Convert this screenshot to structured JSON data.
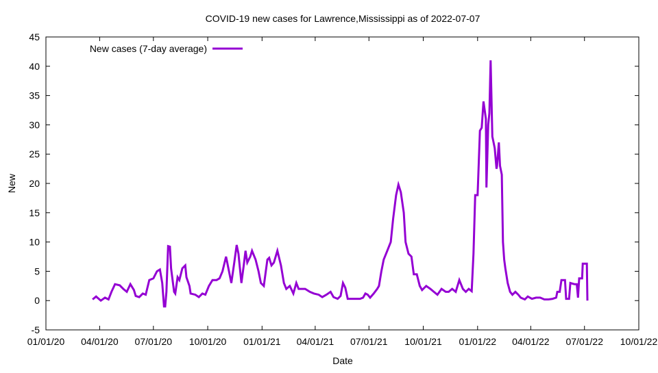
{
  "chart_data": {
    "type": "line",
    "title": "COVID-19 new cases for Lawrence,Mississippi as of 2022-07-07",
    "xlabel": "Date",
    "ylabel": "New",
    "xlim": [
      "2020-01-01",
      "2022-10-01"
    ],
    "ylim": [
      -5,
      45
    ],
    "yticks": [
      -5,
      0,
      5,
      10,
      15,
      20,
      25,
      30,
      35,
      40,
      45
    ],
    "xticks": [
      {
        "date": "2020-01-01",
        "label": "01/01/20"
      },
      {
        "date": "2020-04-01",
        "label": "04/01/20"
      },
      {
        "date": "2020-07-01",
        "label": "07/01/20"
      },
      {
        "date": "2020-10-01",
        "label": "10/01/20"
      },
      {
        "date": "2021-01-01",
        "label": "01/01/21"
      },
      {
        "date": "2021-04-01",
        "label": "04/01/21"
      },
      {
        "date": "2021-07-01",
        "label": "07/01/21"
      },
      {
        "date": "2021-10-01",
        "label": "10/01/21"
      },
      {
        "date": "2022-01-01",
        "label": "01/01/22"
      },
      {
        "date": "2022-04-01",
        "label": "04/01/22"
      },
      {
        "date": "2022-07-01",
        "label": "07/01/22"
      },
      {
        "date": "2022-10-01",
        "label": "10/01/22"
      }
    ],
    "grid": false,
    "legend_position": "top-left",
    "series": [
      {
        "name": "New cases (7-day average)",
        "color": "#9400d3",
        "x": [
          "2020-03-20",
          "2020-03-26",
          "2020-04-03",
          "2020-04-10",
          "2020-04-16",
          "2020-04-21",
          "2020-04-27",
          "2020-05-05",
          "2020-05-11",
          "2020-05-17",
          "2020-05-23",
          "2020-05-29",
          "2020-06-01",
          "2020-06-07",
          "2020-06-13",
          "2020-06-18",
          "2020-06-24",
          "2020-07-01",
          "2020-07-07",
          "2020-07-12",
          "2020-07-16",
          "2020-07-19",
          "2020-07-21",
          "2020-07-23",
          "2020-07-26",
          "2020-07-29",
          "2020-07-31",
          "2020-08-05",
          "2020-08-07",
          "2020-08-11",
          "2020-08-14",
          "2020-08-19",
          "2020-08-24",
          "2020-08-26",
          "2020-08-31",
          "2020-09-02",
          "2020-09-10",
          "2020-09-16",
          "2020-09-22",
          "2020-09-27",
          "2020-10-03",
          "2020-10-09",
          "2020-10-16",
          "2020-10-21",
          "2020-10-26",
          "2020-11-01",
          "2020-11-06",
          "2020-11-10",
          "2020-11-15",
          "2020-11-19",
          "2020-11-22",
          "2020-11-27",
          "2020-12-01",
          "2020-12-04",
          "2020-12-07",
          "2020-12-12",
          "2020-12-15",
          "2020-12-21",
          "2020-12-26",
          "2020-12-30",
          "2021-01-04",
          "2021-01-10",
          "2021-01-13",
          "2021-01-17",
          "2021-01-21",
          "2021-01-27",
          "2021-02-02",
          "2021-02-07",
          "2021-02-11",
          "2021-02-17",
          "2021-02-23",
          "2021-02-28",
          "2021-03-04",
          "2021-03-15",
          "2021-03-23",
          "2021-03-30",
          "2021-04-07",
          "2021-04-13",
          "2021-04-20",
          "2021-04-27",
          "2021-05-02",
          "2021-05-09",
          "2021-05-14",
          "2021-05-18",
          "2021-05-22",
          "2021-05-26",
          "2021-06-04",
          "2021-06-16",
          "2021-06-21",
          "2021-06-25",
          "2021-06-29",
          "2021-07-03",
          "2021-07-09",
          "2021-07-15",
          "2021-07-18",
          "2021-07-22",
          "2021-07-26",
          "2021-08-01",
          "2021-08-07",
          "2021-08-11",
          "2021-08-16",
          "2021-08-20",
          "2021-08-24",
          "2021-08-29",
          "2021-09-01",
          "2021-09-06",
          "2021-09-11",
          "2021-09-15",
          "2021-09-20",
          "2021-09-25",
          "2021-09-29",
          "2021-10-06",
          "2021-10-13",
          "2021-10-19",
          "2021-10-25",
          "2021-11-01",
          "2021-11-08",
          "2021-11-13",
          "2021-11-19",
          "2021-11-25",
          "2021-12-01",
          "2021-12-07",
          "2021-12-12",
          "2021-12-17",
          "2021-12-22",
          "2021-12-25",
          "2021-12-28",
          "2022-01-01",
          "2022-01-05",
          "2022-01-08",
          "2022-01-11",
          "2022-01-15",
          "2022-01-16",
          "2022-01-19",
          "2022-01-21",
          "2022-01-23",
          "2022-01-26",
          "2022-01-28",
          "2022-01-30",
          "2022-02-02",
          "2022-02-03",
          "2022-02-06",
          "2022-02-08",
          "2022-02-11",
          "2022-02-13",
          "2022-02-15",
          "2022-02-17",
          "2022-02-21",
          "2022-02-25",
          "2022-03-01",
          "2022-03-06",
          "2022-03-11",
          "2022-03-15",
          "2022-03-22",
          "2022-03-27",
          "2022-04-03",
          "2022-04-10",
          "2022-04-17",
          "2022-04-24",
          "2022-05-01",
          "2022-05-08",
          "2022-05-14",
          "2022-05-16",
          "2022-05-20",
          "2022-05-23",
          "2022-05-29",
          "2022-05-31",
          "2022-06-05",
          "2022-06-07",
          "2022-06-14",
          "2022-06-18",
          "2022-06-20",
          "2022-06-22",
          "2022-06-27",
          "2022-06-28",
          "2022-07-05",
          "2022-07-06"
        ],
        "y": [
          0.2,
          0.7,
          0,
          0.5,
          0.2,
          1.5,
          2.8,
          2.6,
          2.0,
          1.5,
          2.8,
          1.8,
          0.8,
          0.6,
          1.2,
          1.0,
          3.5,
          3.8,
          5.0,
          5.3,
          3.0,
          -1.0,
          -1.0,
          1.5,
          9.3,
          9.2,
          5.5,
          1.5,
          1.2,
          4.0,
          3.5,
          5.5,
          6.0,
          4.0,
          2.5,
          1.2,
          1.0,
          0.6,
          1.2,
          1.0,
          2.5,
          3.5,
          3.5,
          3.8,
          5.0,
          7.5,
          5.0,
          3.0,
          6.5,
          9.5,
          8.0,
          3.0,
          6.0,
          8.5,
          6.5,
          7.5,
          8.5,
          7.0,
          5.0,
          3.0,
          2.5,
          7.0,
          7.3,
          6.0,
          6.5,
          8.5,
          6.0,
          3.0,
          2.0,
          2.5,
          1.2,
          3.0,
          2.0,
          2.0,
          1.5,
          1.2,
          1.0,
          0.6,
          1.0,
          1.5,
          0.6,
          0.3,
          0.8,
          3.0,
          2.2,
          0.3,
          0.3,
          0.3,
          0.5,
          1.2,
          1.0,
          0.5,
          1.2,
          2.0,
          2.5,
          5.0,
          7.0,
          8.5,
          10.0,
          14.0,
          18.0,
          19.8,
          18.5,
          15.0,
          10.0,
          8.0,
          7.5,
          4.5,
          4.5,
          2.5,
          1.8,
          2.5,
          2.0,
          1.5,
          1.0,
          2.0,
          1.5,
          1.5,
          2.0,
          1.5,
          3.5,
          2.0,
          1.5,
          2.0,
          1.6,
          8,
          18,
          18,
          29,
          29.5,
          34,
          31,
          19.3,
          30,
          32,
          41,
          28,
          27,
          26,
          22.5,
          23,
          27,
          23,
          21.5,
          10,
          7,
          5.5,
          3,
          1.5,
          1.0,
          1.5,
          1.0,
          0.5,
          0.2,
          0.7,
          0.3,
          0.5,
          0.5,
          0.2,
          0.2,
          0.3,
          0.5,
          1.5,
          1.5,
          3.5,
          3.5,
          0.3,
          0.3,
          3.0,
          2.8,
          2.8,
          0.5,
          3.8,
          3.8,
          6.3,
          6.3,
          0
        ]
      }
    ]
  }
}
